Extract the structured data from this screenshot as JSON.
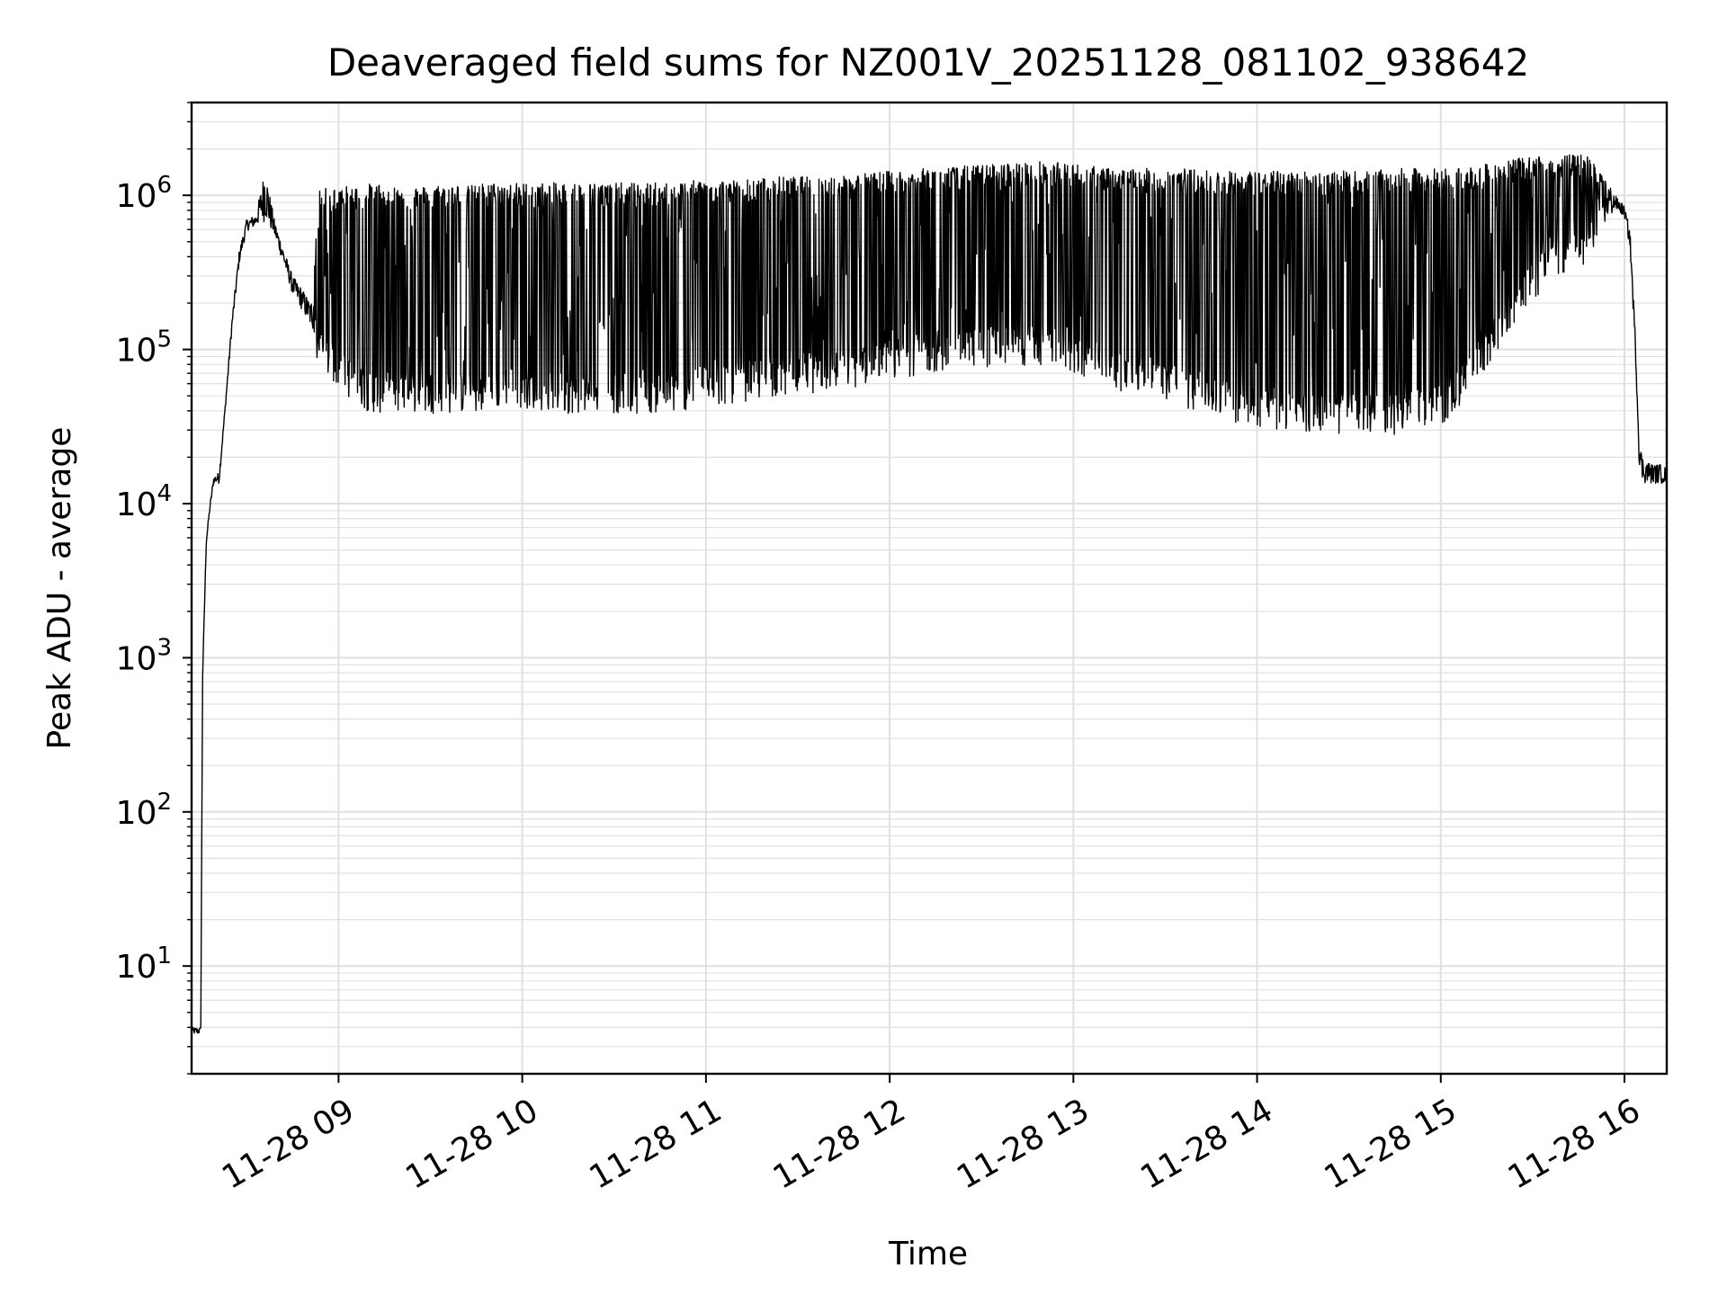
{
  "chart_data": {
    "type": "line",
    "title": "Deaveraged field sums for NZ001V_20251128_081102_938642",
    "xlabel": "Time",
    "ylabel": "Peak ADU - average",
    "yscale": "log",
    "ylim": [
      2.0,
      4000000
    ],
    "xlim_hours": [
      8.2,
      16.23
    ],
    "grid": true,
    "legend": "none",
    "line_color": "#000000",
    "grid_color": "#e0e0e0",
    "x_ticks": [
      {
        "value": 9,
        "label": "11-28 09"
      },
      {
        "value": 10,
        "label": "11-28 10"
      },
      {
        "value": 11,
        "label": "11-28 11"
      },
      {
        "value": 12,
        "label": "11-28 12"
      },
      {
        "value": 13,
        "label": "11-28 13"
      },
      {
        "value": 14,
        "label": "11-28 14"
      },
      {
        "value": 15,
        "label": "11-28 15"
      },
      {
        "value": 16,
        "label": "11-28 16"
      }
    ],
    "y_ticks": [
      {
        "value": 10,
        "base": "10",
        "exp": "1"
      },
      {
        "value": 100,
        "base": "10",
        "exp": "2"
      },
      {
        "value": 1000,
        "base": "10",
        "exp": "3"
      },
      {
        "value": 10000,
        "base": "10",
        "exp": "4"
      },
      {
        "value": 100000,
        "base": "10",
        "exp": "5"
      },
      {
        "value": 1000000,
        "base": "10",
        "exp": "6"
      }
    ],
    "series": [
      {
        "name": "Peak ADU - average",
        "description_note": "dense time series, approx envelope sampled",
        "x": [
          8.2,
          8.22,
          8.24,
          8.25,
          8.26,
          8.28,
          8.3,
          8.32,
          8.35,
          8.38,
          8.42,
          8.46,
          8.5,
          8.55,
          8.6,
          8.65,
          8.7,
          8.75,
          8.8,
          8.85,
          8.9,
          8.95,
          9.0,
          9.05,
          9.1,
          9.2,
          9.3,
          9.4,
          9.5,
          9.6,
          9.7,
          9.8,
          9.9,
          10.0,
          10.2,
          10.4,
          10.6,
          10.8,
          11.0,
          11.2,
          11.4,
          11.6,
          11.8,
          12.0,
          12.2,
          12.4,
          12.6,
          12.8,
          13.0,
          13.2,
          13.4,
          13.6,
          13.8,
          14.0,
          14.2,
          14.4,
          14.6,
          14.8,
          15.0,
          15.2,
          15.4,
          15.6,
          15.8,
          15.9,
          15.95,
          16.0,
          16.03,
          16.06,
          16.08,
          16.1,
          16.15,
          16.2,
          16.23
        ],
        "y": [
          4,
          4,
          4,
          4,
          800,
          6000,
          10000,
          15000,
          15000,
          40000,
          150000,
          400000,
          650000,
          700000,
          750000,
          600000,
          400000,
          250000,
          200000,
          150000,
          100000,
          90000,
          80000,
          70000,
          60000,
          55000,
          55000,
          55000,
          55000,
          55000,
          55000,
          55000,
          60000,
          60000,
          55000,
          55000,
          55000,
          55000,
          60000,
          65000,
          70000,
          75000,
          80000,
          90000,
          100000,
          110000,
          110000,
          110000,
          100000,
          80000,
          70000,
          60000,
          50000,
          45000,
          40000,
          40000,
          40000,
          40000,
          45000,
          80000,
          200000,
          400000,
          500000,
          700000,
          900000,
          800000,
          500000,
          100000,
          20000,
          15000,
          15000,
          15000,
          15000
        ],
        "y_upper": [
          4,
          4,
          4,
          4,
          800,
          6000,
          10000,
          15000,
          16000,
          40000,
          160000,
          450000,
          700000,
          750000,
          1500000,
          700000,
          450000,
          300000,
          250000,
          200000,
          1000000,
          950000,
          1000000,
          1000000,
          1000000,
          1050000,
          1000000,
          1000000,
          1000000,
          1050000,
          1000000,
          1050000,
          1050000,
          1050000,
          1050000,
          1050000,
          1050000,
          1050000,
          1100000,
          1100000,
          1150000,
          1150000,
          1200000,
          1250000,
          1300000,
          1350000,
          1400000,
          1450000,
          1400000,
          1300000,
          1300000,
          1300000,
          1250000,
          1250000,
          1250000,
          1250000,
          1250000,
          1300000,
          1300000,
          1350000,
          1500000,
          1600000,
          1600000,
          1300000,
          1000000,
          850000,
          600000,
          120000,
          25000,
          20000,
          18000,
          18000,
          17000
        ]
      }
    ]
  }
}
